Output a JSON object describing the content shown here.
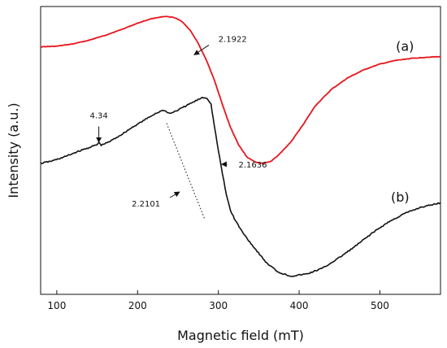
{
  "chart_data": {
    "type": "line",
    "title": "",
    "xlabel": "Magnetic field (mT)",
    "ylabel": "Intensity (a.u.)",
    "xlim": [
      80,
      575
    ],
    "ylim": [
      0,
      1
    ],
    "xticks": [
      100,
      200,
      300,
      400,
      500
    ],
    "xtick_labels": [
      "100",
      "200",
      "300",
      "400",
      "500"
    ],
    "y_tick_labels_shown": false,
    "grid": false,
    "legend": "none",
    "series": [
      {
        "name": "(a)",
        "color": "#e8141b",
        "label_position": [
          531,
          0.846
        ],
        "points": [
          [
            80,
            0.86
          ],
          [
            100,
            0.862
          ],
          [
            120,
            0.87
          ],
          [
            140,
            0.883
          ],
          [
            160,
            0.9
          ],
          [
            180,
            0.92
          ],
          [
            200,
            0.942
          ],
          [
            215,
            0.956
          ],
          [
            225,
            0.962
          ],
          [
            235,
            0.965
          ],
          [
            245,
            0.962
          ],
          [
            255,
            0.948
          ],
          [
            265,
            0.918
          ],
          [
            275,
            0.872
          ],
          [
            285,
            0.815
          ],
          [
            295,
            0.745
          ],
          [
            305,
            0.66
          ],
          [
            315,
            0.58
          ],
          [
            325,
            0.52
          ],
          [
            335,
            0.478
          ],
          [
            345,
            0.46
          ],
          [
            355,
            0.455
          ],
          [
            365,
            0.462
          ],
          [
            375,
            0.485
          ],
          [
            390,
            0.53
          ],
          [
            405,
            0.59
          ],
          [
            420,
            0.655
          ],
          [
            440,
            0.712
          ],
          [
            460,
            0.752
          ],
          [
            480,
            0.78
          ],
          [
            500,
            0.8
          ],
          [
            520,
            0.813
          ],
          [
            540,
            0.82
          ],
          [
            560,
            0.824
          ],
          [
            575,
            0.826
          ]
        ]
      },
      {
        "name": "(b)",
        "color": "#111111",
        "label_position": [
          525,
          0.322
        ],
        "points": [
          [
            80,
            0.455
          ],
          [
            95,
            0.464
          ],
          [
            110,
            0.478
          ],
          [
            125,
            0.495
          ],
          [
            140,
            0.51
          ],
          [
            150,
            0.52
          ],
          [
            152,
            0.528
          ],
          [
            155,
            0.518
          ],
          [
            165,
            0.53
          ],
          [
            180,
            0.555
          ],
          [
            195,
            0.583
          ],
          [
            210,
            0.608
          ],
          [
            222,
            0.628
          ],
          [
            232,
            0.64
          ],
          [
            240,
            0.628
          ],
          [
            250,
            0.64
          ],
          [
            262,
            0.658
          ],
          [
            272,
            0.672
          ],
          [
            280,
            0.684
          ],
          [
            286,
            0.682
          ],
          [
            291,
            0.66
          ],
          [
            295,
            0.585
          ],
          [
            300,
            0.5
          ],
          [
            305,
            0.42
          ],
          [
            310,
            0.345
          ],
          [
            315,
            0.292
          ],
          [
            320,
            0.262
          ],
          [
            330,
            0.215
          ],
          [
            345,
            0.16
          ],
          [
            360,
            0.108
          ],
          [
            375,
            0.076
          ],
          [
            390,
            0.063
          ],
          [
            410,
            0.071
          ],
          [
            430,
            0.092
          ],
          [
            450,
            0.128
          ],
          [
            470,
            0.168
          ],
          [
            490,
            0.212
          ],
          [
            510,
            0.25
          ],
          [
            530,
            0.28
          ],
          [
            550,
            0.302
          ],
          [
            575,
            0.318
          ]
        ]
      }
    ],
    "annotations": [
      {
        "text": "2.1922",
        "target": [
          270,
          0.832
        ],
        "label_at": [
          300,
          0.888
        ]
      },
      {
        "text": "4.34",
        "target": [
          152,
          0.528
        ],
        "label_at": [
          152,
          0.623
        ]
      },
      {
        "text": "2.1636",
        "target": [
          304,
          0.452
        ],
        "label_at": [
          325,
          0.452
        ]
      },
      {
        "text": "2.2101",
        "target": [
          252,
          0.356
        ],
        "label_at": [
          228,
          0.316
        ]
      }
    ],
    "guide_line": {
      "style": "dotted",
      "from": [
        236,
        0.594
      ],
      "to": [
        283,
        0.262
      ]
    }
  }
}
